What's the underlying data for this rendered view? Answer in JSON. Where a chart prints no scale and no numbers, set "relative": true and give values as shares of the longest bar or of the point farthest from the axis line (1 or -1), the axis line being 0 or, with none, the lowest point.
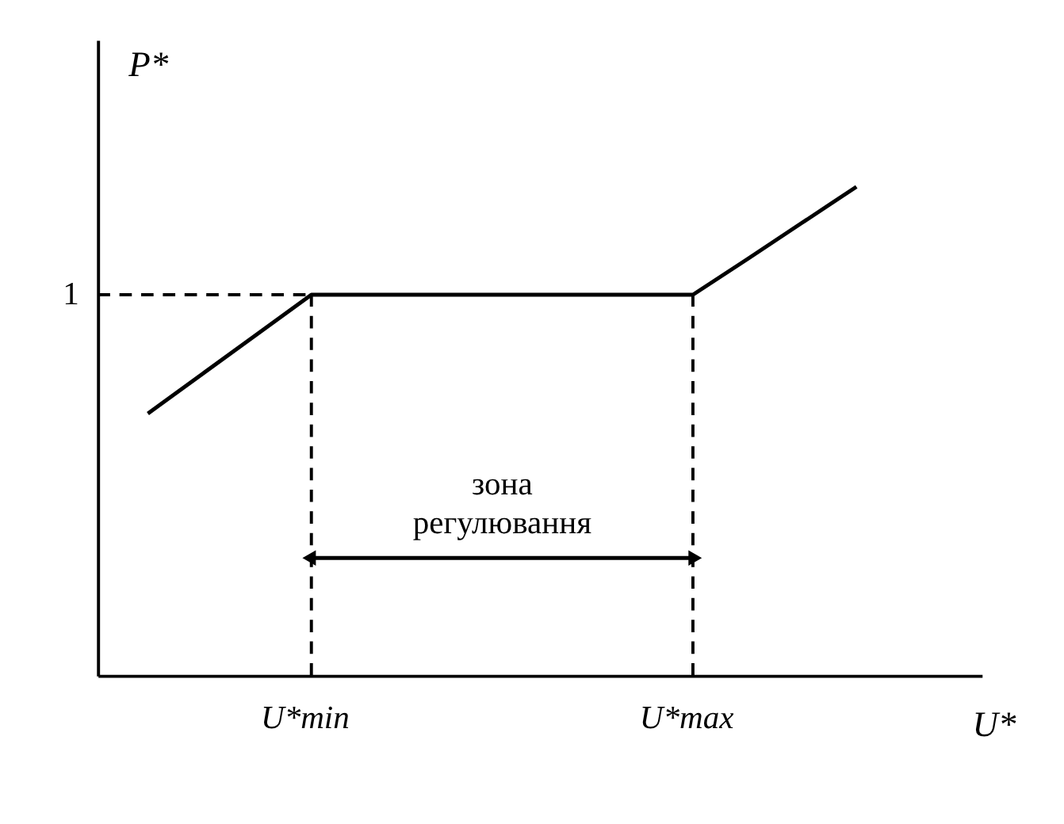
{
  "chart_data": {
    "type": "line",
    "relative": true,
    "xlabel": "U*",
    "ylabel": "P*",
    "categories": [
      null,
      null,
      null,
      "U*min",
      null,
      null,
      null,
      null,
      null,
      null,
      "U*max",
      null,
      null,
      null
    ],
    "series": [
      {
        "color": "#000000",
        "values": [
          0.536,
          0.617,
          0.698,
          0.779,
          0.779,
          0.779,
          0.779,
          0.779,
          0.779,
          0.779,
          0.779,
          0.852,
          0.926,
          1.0
        ]
      }
    ],
    "ref_lines": [
      {
        "axis": "y",
        "value": 0.779,
        "label": "1",
        "line_style": "dashed"
      },
      {
        "axis": "x",
        "value": "U*min",
        "line_style": "dashed"
      },
      {
        "axis": "x",
        "value": "U*max",
        "line_style": "dashed"
      }
    ],
    "annotations": [
      "зона регулювання"
    ],
    "grid": false,
    "marker": "none",
    "line_style": "solid"
  }
}
